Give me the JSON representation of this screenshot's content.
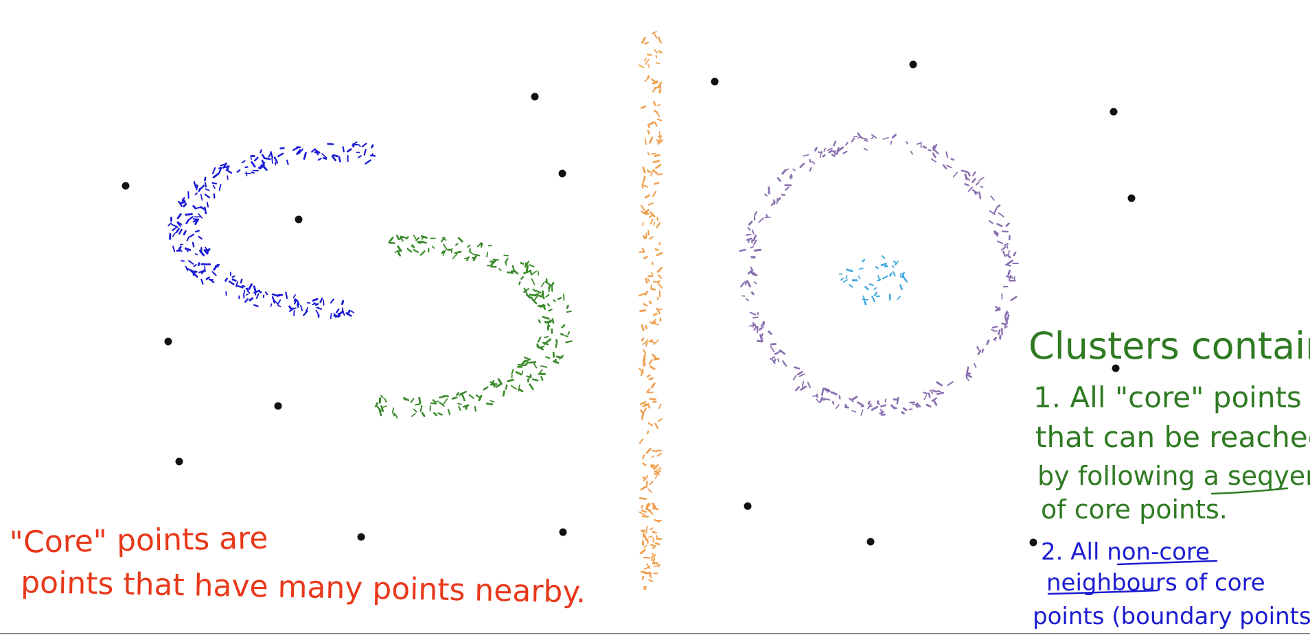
{
  "annotations": {
    "core_note": {
      "line1": "\"Core\" points are",
      "line2": "points that have many points nearby."
    },
    "clusters_heading": "Clusters contain:",
    "item1": {
      "line1": "1. All \"core\" points",
      "line2": "that can be reached",
      "line3": "by following a seqyence",
      "line4": "of core points."
    },
    "item2": {
      "line1": "2. All non-core",
      "line2": "neighbours of core",
      "line3": "points (boundary points)"
    }
  },
  "colors": {
    "blue_cluster": "#1a1ad6",
    "green_cluster": "#3a8a2a",
    "orange_cluster": "#f0a050",
    "purple_cluster": "#8a70b0",
    "light_blue_cluster": "#40a8e0",
    "noise": "#111111",
    "red_text": "#e8381a",
    "green_text": "#2f7a22",
    "blue_text": "#1c1cd0",
    "bottom_border": "#888888"
  },
  "icons": {
    "noise_points": "black-dot-icon"
  }
}
